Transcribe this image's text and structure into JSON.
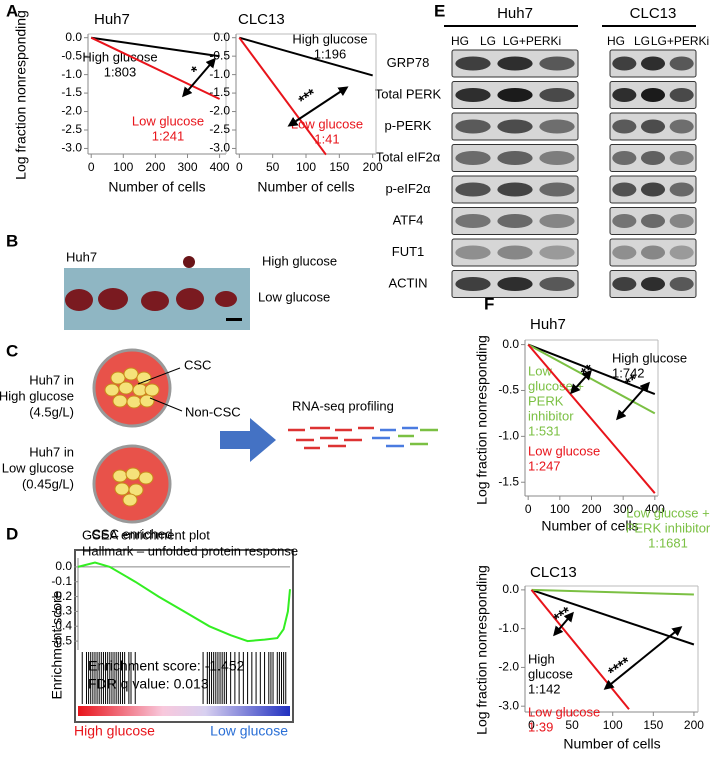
{
  "chart_data": [
    {
      "type": "line",
      "title": "Huh7",
      "x_label": "Number of cells",
      "y_label": "Log fraction nonresponding",
      "xlim": [
        -10,
        420
      ],
      "xticks": [
        0,
        100,
        200,
        300,
        400
      ],
      "ylim": [
        -3.15,
        0.1
      ],
      "yticks": [
        {
          "value": 0,
          "label": "0.0"
        },
        -0.5,
        {
          "value": -1,
          "label": "-1.0"
        },
        -1.5,
        {
          "value": -2,
          "label": "-2.0"
        },
        -2.5,
        {
          "value": -3,
          "label": "-3.0"
        }
      ],
      "series": [
        {
          "label": [
            "High glucose",
            "1:803"
          ],
          "color": "#000000",
          "x": [
            0,
            400
          ],
          "values": [
            0,
            -0.5
          ]
        },
        {
          "label": [
            "Low glucose",
            "1:241"
          ],
          "color": "#e8141b",
          "x": [
            0,
            400
          ],
          "values": [
            0,
            -1.66
          ]
        }
      ],
      "annotations": [
        {
          "text": "*"
        }
      ]
    },
    {
      "type": "line",
      "title": "CLC13",
      "x_label": "Number of cells",
      "xlim": [
        -5,
        205
      ],
      "xticks": [
        0,
        50,
        100,
        150,
        200
      ],
      "ylim": [
        -3.15,
        0.1
      ],
      "yticks": [
        {
          "value": 0,
          "label": "0.0"
        },
        -0.5,
        {
          "value": -1,
          "label": "-1.0"
        },
        -1.5,
        {
          "value": -2,
          "label": "-2.0"
        },
        -2.5,
        {
          "value": -3,
          "label": "-3.0"
        }
      ],
      "series": [
        {
          "label": [
            "High glucose",
            "1:196"
          ],
          "color": "#000000",
          "x": [
            0,
            200
          ],
          "values": [
            0,
            -1.02
          ]
        },
        {
          "label": [
            "Low glucose",
            "1:41"
          ],
          "color": "#e8141b",
          "x": [
            0,
            130
          ],
          "values": [
            0,
            -3.17
          ]
        }
      ],
      "annotations": [
        {
          "text": "***"
        }
      ]
    },
    {
      "type": "line",
      "title": [
        "GSEA enrichment plot",
        "Hallmark – unfolded protein response"
      ],
      "y_label": "Enrichment score",
      "xlim": [
        0,
        100
      ],
      "ylim": [
        -0.56,
        0.06
      ],
      "yticks": [
        {
          "value": 0,
          "label": "0.0"
        },
        -0.1,
        -0.2,
        -0.3,
        -0.4,
        -0.5
      ],
      "series": [
        {
          "color": "#33ee22",
          "x": [
            0,
            8,
            15,
            27,
            38,
            50,
            62,
            72,
            80,
            88,
            94,
            97,
            99,
            100
          ],
          "values": [
            0,
            0.03,
            0,
            -0.1,
            -0.2,
            -0.3,
            -0.4,
            -0.46,
            -0.5,
            -0.49,
            -0.48,
            -0.42,
            -0.3,
            -0.15
          ]
        }
      ],
      "annotations": [
        {
          "text": "Enrichment score: -1.452"
        },
        {
          "text": "FDR q value: 0.013"
        }
      ],
      "end_labels": [
        {
          "text": "High glucose",
          "color": "#e8141b"
        },
        {
          "text": "Low glucose",
          "color": "#2a6fd6"
        }
      ]
    },
    {
      "type": "line",
      "title": "Huh7",
      "x_label": "Number of cells",
      "y_label": "Log fraction nonresponding",
      "xlim": [
        -10,
        410
      ],
      "xticks": [
        0,
        100,
        200,
        300,
        400
      ],
      "ylim": [
        -1.65,
        0.05
      ],
      "yticks": [
        {
          "value": 0,
          "label": "0.0"
        },
        -0.5,
        {
          "value": -1,
          "label": "-1.0"
        },
        -1.5
      ],
      "series": [
        {
          "label": [
            "High glucose",
            "1:742"
          ],
          "color": "#000000",
          "x": [
            0,
            400
          ],
          "values": [
            0,
            -0.54
          ]
        },
        {
          "label": [
            "Low",
            "glucose +",
            "PERK",
            "inhibitor",
            "1:531"
          ],
          "color": "#7bc043",
          "x": [
            0,
            400
          ],
          "values": [
            0,
            -0.75
          ]
        },
        {
          "label": [
            "Low glucose",
            "1:247"
          ],
          "color": "#e8141b",
          "x": [
            0,
            400
          ],
          "values": [
            0,
            -1.62
          ]
        }
      ],
      "annotations": [
        {
          "text": "**"
        },
        {
          "text": "**"
        }
      ]
    },
    {
      "type": "line",
      "title": "CLC13",
      "x_label": "Number of cells",
      "y_label": "Log fraction nonresponding",
      "xlim": [
        -8,
        205
      ],
      "xticks": [
        0,
        50,
        100,
        150,
        200
      ],
      "ylim": [
        -3.15,
        0.1
      ],
      "yticks": [
        {
          "value": 0,
          "label": "0.0"
        },
        {
          "value": -1,
          "label": "-1.0"
        },
        {
          "value": -2,
          "label": "-2.0"
        },
        {
          "value": -3,
          "label": "-3.0"
        }
      ],
      "series": [
        {
          "label": [
            "High",
            "glucose",
            "1:142"
          ],
          "color": "#000000",
          "x": [
            0,
            200
          ],
          "values": [
            0,
            -1.41
          ]
        },
        {
          "label": [
            "Low glucose +",
            "PERK inhibitor",
            "1:1681"
          ],
          "color": "#7bc043",
          "x": [
            0,
            200
          ],
          "values": [
            0,
            -0.12
          ]
        },
        {
          "label": [
            "Low glucose",
            "1:39"
          ],
          "color": "#e8141b",
          "x": [
            0,
            120
          ],
          "values": [
            0,
            -3.08
          ]
        }
      ],
      "annotations": [
        {
          "text": "***"
        },
        {
          "text": "****"
        }
      ]
    }
  ],
  "panel_letters": [
    "A",
    "B",
    "C",
    "D",
    "E",
    "F"
  ],
  "panel_b": {
    "title": "Huh7",
    "labels": [
      "High glucose",
      "Low glucose"
    ]
  },
  "panel_c": {
    "high_condition": [
      "Huh7 in",
      "High glucose",
      "(4.5g/L)"
    ],
    "low_condition": [
      "Huh7 in",
      "Low glucose",
      "(0.45g/L)"
    ],
    "csc": "CSC",
    "non_csc": "Non-CSC",
    "footer": "CSC enriched",
    "arrow_label": "RNA-seq profiling"
  },
  "panel_e": {
    "groups": [
      {
        "name": "Huh7",
        "lanes": [
          "HG",
          "LG",
          "LG+PERKi"
        ]
      },
      {
        "name": "CLC13",
        "lanes": [
          "HG",
          "LG",
          "LG+PERKi"
        ]
      }
    ],
    "rows": [
      "GRP78",
      "Total PERK",
      "p-PERK",
      "Total eIF2α",
      "p-eIF2α",
      "ATF4",
      "FUT1",
      "ACTIN"
    ]
  }
}
